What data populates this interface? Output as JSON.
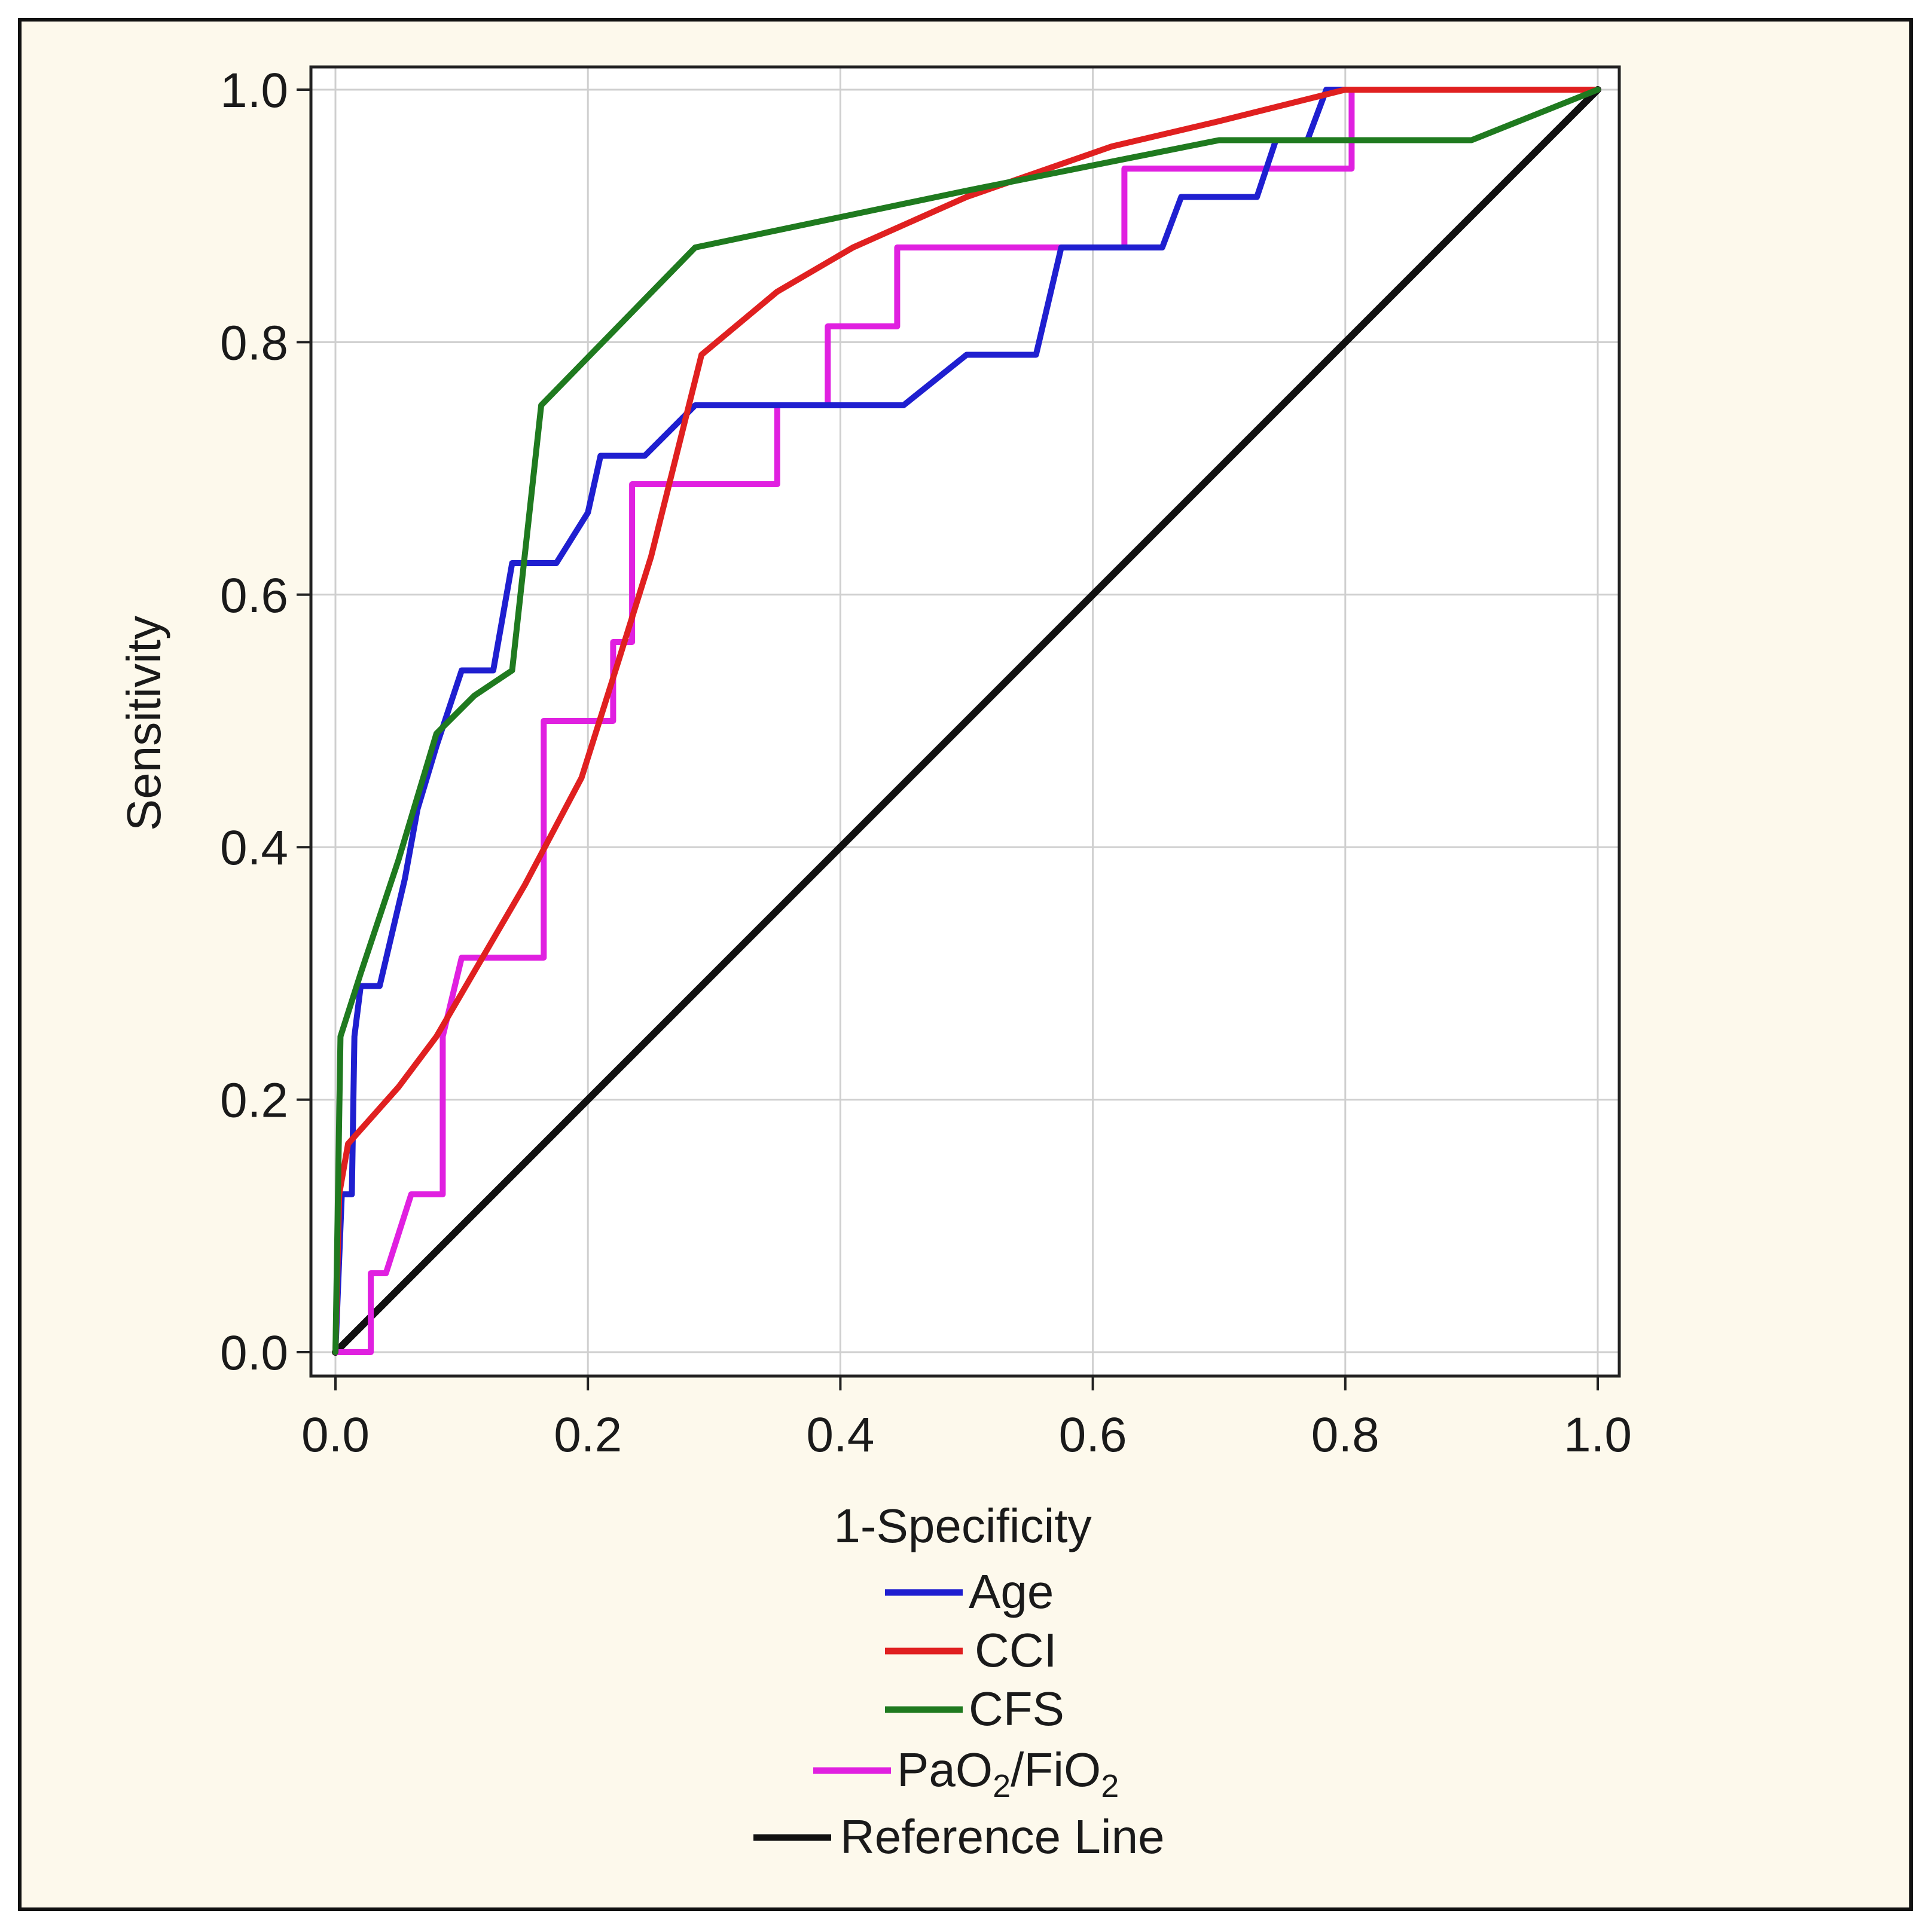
{
  "chart_data": {
    "type": "line",
    "title": "",
    "xlabel": "1-Specificity",
    "ylabel": "Sensitivity",
    "xlim": [
      0,
      1
    ],
    "ylim": [
      0,
      1
    ],
    "grid": true,
    "x_ticks": [
      "0.0",
      "0.2",
      "0.4",
      "0.6",
      "0.8",
      "1.0"
    ],
    "y_ticks": [
      "0.0",
      "0.2",
      "0.4",
      "0.6",
      "0.8",
      "1.0"
    ],
    "legend_position": "bottom-center",
    "series": [
      {
        "name": "Age",
        "label_main": "Age",
        "color": "#1f1fd0",
        "points": [
          [
            0,
            0
          ],
          [
            0.005,
            0.125
          ],
          [
            0.013,
            0.125
          ],
          [
            0.015,
            0.25
          ],
          [
            0.02,
            0.29
          ],
          [
            0.035,
            0.29
          ],
          [
            0.055,
            0.375
          ],
          [
            0.065,
            0.43
          ],
          [
            0.08,
            0.48
          ],
          [
            0.1,
            0.54
          ],
          [
            0.125,
            0.54
          ],
          [
            0.14,
            0.625
          ],
          [
            0.175,
            0.625
          ],
          [
            0.2,
            0.665
          ],
          [
            0.21,
            0.71
          ],
          [
            0.245,
            0.71
          ],
          [
            0.285,
            0.75
          ],
          [
            0.45,
            0.75
          ],
          [
            0.5,
            0.79
          ],
          [
            0.555,
            0.79
          ],
          [
            0.575,
            0.875
          ],
          [
            0.655,
            0.875
          ],
          [
            0.67,
            0.915
          ],
          [
            0.73,
            0.915
          ],
          [
            0.745,
            0.96
          ],
          [
            0.77,
            0.96
          ],
          [
            0.785,
            1.0
          ],
          [
            1.0,
            1.0
          ]
        ]
      },
      {
        "name": "CCI",
        "label_main": "CCI",
        "color": "#e02020",
        "points": [
          [
            0,
            0
          ],
          [
            0.003,
            0.125
          ],
          [
            0.01,
            0.165
          ],
          [
            0.05,
            0.21
          ],
          [
            0.08,
            0.25
          ],
          [
            0.15,
            0.37
          ],
          [
            0.195,
            0.455
          ],
          [
            0.225,
            0.55
          ],
          [
            0.25,
            0.63
          ],
          [
            0.29,
            0.79
          ],
          [
            0.35,
            0.84
          ],
          [
            0.41,
            0.875
          ],
          [
            0.5,
            0.915
          ],
          [
            0.615,
            0.955
          ],
          [
            0.7,
            0.975
          ],
          [
            0.8,
            1.0
          ],
          [
            1.0,
            1.0
          ]
        ]
      },
      {
        "name": "CFS",
        "label_main": "CFS",
        "color": "#1f7a1f",
        "points": [
          [
            0,
            0
          ],
          [
            0.004,
            0.25
          ],
          [
            0.02,
            0.3
          ],
          [
            0.05,
            0.39
          ],
          [
            0.08,
            0.49
          ],
          [
            0.11,
            0.52
          ],
          [
            0.14,
            0.54
          ],
          [
            0.163,
            0.75
          ],
          [
            0.285,
            0.875
          ],
          [
            0.5,
            0.92
          ],
          [
            0.6,
            0.94
          ],
          [
            0.7,
            0.96
          ],
          [
            0.9,
            0.96
          ],
          [
            1.0,
            1.0
          ]
        ]
      },
      {
        "name": "PaO2/FiO2",
        "label_main": "PaO",
        "label_sub1": "2",
        "label_mid": "/FiO",
        "label_sub2": "2",
        "color": "#e020e0",
        "points": [
          [
            0,
            0
          ],
          [
            0.028,
            0
          ],
          [
            0.028,
            0.0625
          ],
          [
            0.04,
            0.0625
          ],
          [
            0.06,
            0.125
          ],
          [
            0.085,
            0.125
          ],
          [
            0.085,
            0.25
          ],
          [
            0.1,
            0.3125
          ],
          [
            0.165,
            0.3125
          ],
          [
            0.165,
            0.5
          ],
          [
            0.22,
            0.5
          ],
          [
            0.22,
            0.5625
          ],
          [
            0.235,
            0.5625
          ],
          [
            0.235,
            0.6875
          ],
          [
            0.35,
            0.6875
          ],
          [
            0.35,
            0.75
          ],
          [
            0.39,
            0.75
          ],
          [
            0.39,
            0.8125
          ],
          [
            0.445,
            0.8125
          ],
          [
            0.445,
            0.875
          ],
          [
            0.625,
            0.875
          ],
          [
            0.625,
            0.9375
          ],
          [
            0.805,
            0.9375
          ],
          [
            0.805,
            1.0
          ],
          [
            1.0,
            1.0
          ]
        ]
      },
      {
        "name": "Reference Line",
        "label_main": "Reference Line",
        "color": "#111111",
        "points": [
          [
            0,
            0
          ],
          [
            1,
            1
          ]
        ]
      }
    ]
  }
}
